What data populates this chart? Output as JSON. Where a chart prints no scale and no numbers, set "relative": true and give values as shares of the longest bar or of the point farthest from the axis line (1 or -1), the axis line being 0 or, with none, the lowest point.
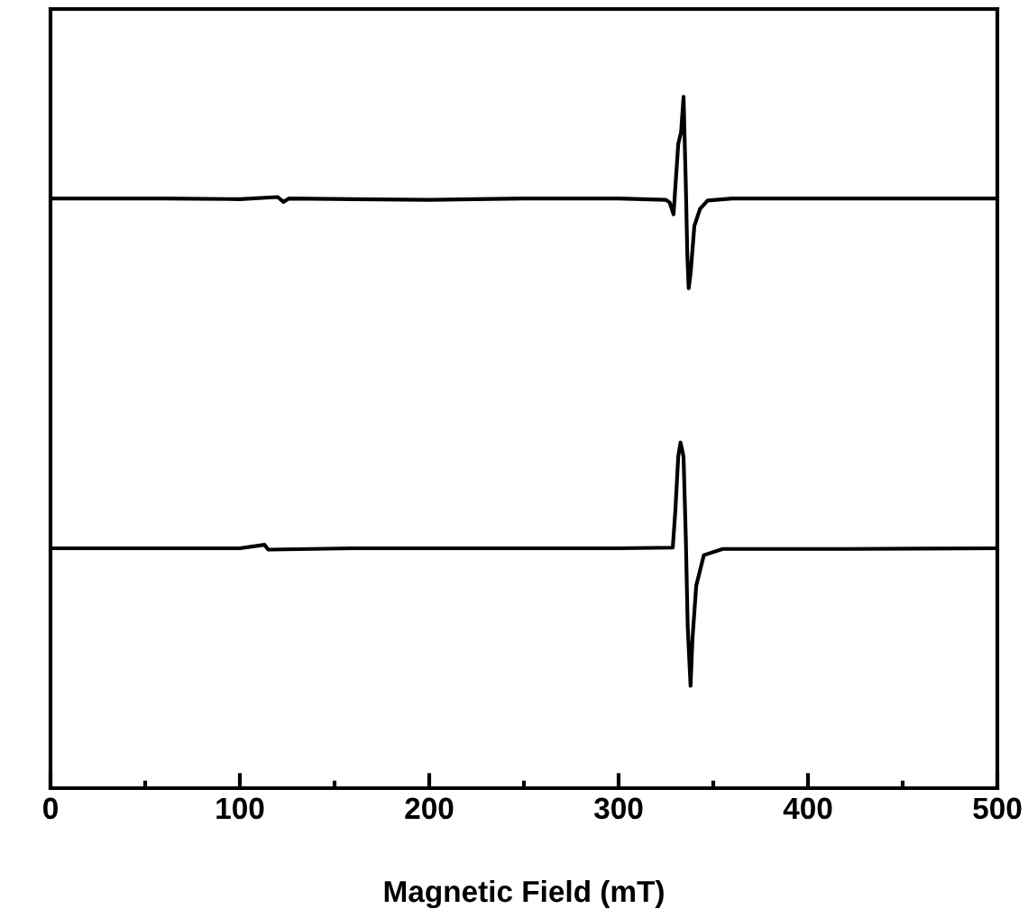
{
  "chart_data": {
    "type": "line",
    "xlabel": "Magnetic Field (mT)",
    "relative": true,
    "xlim": [
      0,
      500
    ],
    "xticks": [
      0,
      100,
      200,
      300,
      400,
      500
    ],
    "tick_labels": "x",
    "grid": false,
    "legend": false,
    "marker": "none",
    "line_style": "solid",
    "series": [
      {
        "color": "#000000",
        "x": [
          0,
          60,
          100,
          120,
          123,
          126,
          160,
          200,
          250,
          300,
          325,
          327,
          329,
          331.5,
          333,
          334.3,
          335.5,
          336.3,
          337,
          338,
          340,
          343,
          347,
          360,
          420,
          500
        ],
        "values": [
          0.853,
          0.853,
          0.852,
          0.855,
          0.848,
          0.853,
          0.852,
          0.851,
          0.853,
          0.853,
          0.851,
          0.847,
          0.83,
          0.932,
          0.949,
          1.0,
          0.872,
          0.77,
          0.723,
          0.744,
          0.813,
          0.838,
          0.85,
          0.853,
          0.853,
          0.853
        ]
      },
      {
        "color": "#000000",
        "x": [
          0,
          60,
          100,
          113,
          115,
          160,
          200,
          250,
          300,
          328.6,
          330,
          331.5,
          332.7,
          333.6,
          334.3,
          335.5,
          336.5,
          338,
          339,
          341,
          345,
          355,
          420,
          500
        ],
        "values": [
          0.347,
          0.347,
          0.347,
          0.352,
          0.345,
          0.347,
          0.347,
          0.347,
          0.347,
          0.348,
          0.403,
          0.48,
          0.5,
          0.489,
          0.479,
          0.361,
          0.233,
          0.148,
          0.216,
          0.293,
          0.337,
          0.346,
          0.346,
          0.347
        ]
      }
    ]
  }
}
